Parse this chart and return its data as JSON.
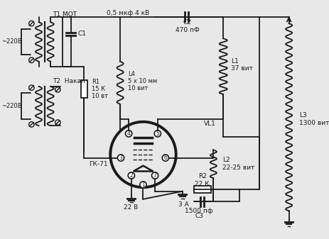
{
  "bg_color": "#e8e8e8",
  "line_color": "#1a1a1a",
  "text_color": "#1a1a1a",
  "figsize": [
    4.64,
    3.37
  ],
  "dpi": 100,
  "labels": {
    "T1_MOT": "T1 МОТ",
    "cap_label": "0,5 мкф 4 кВ",
    "C1": "C1",
    "T2_nakal": "T2  Накал",
    "v220_1": "~220В",
    "v220_2": "~220В",
    "R1": "R1\n15 К\n10 вт",
    "L4": "L4\n5 х 10 мм\n10 вит",
    "C2": "C2\n470 пФ",
    "L1": "L1\n37 вит",
    "VL1": "VL1",
    "GK71": "ГК-71",
    "L2": "L2\n22-25 вит",
    "R2": "R2\n22 К",
    "C3_val": "1500 пф",
    "C3": "С3",
    "L3": "L3\n1300 вит",
    "v22": "22 В",
    "amp3": "3 А",
    "pin1": "1",
    "pin2": "2",
    "pin3": "3",
    "pin4": "4",
    "pin5": "5",
    "pin6": "6",
    "pin7": "7"
  }
}
